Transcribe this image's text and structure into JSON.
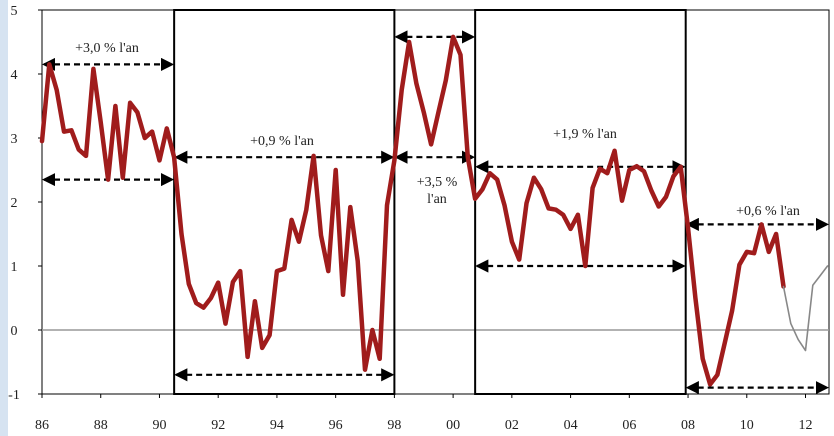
{
  "chart_data": {
    "type": "line",
    "title": "",
    "xlabel": "",
    "ylabel": "",
    "xlim": [
      1986,
      2012.8
    ],
    "ylim": [
      -1,
      5
    ],
    "x_ticks": [
      1986,
      1988,
      1990,
      1992,
      1994,
      1996,
      1998,
      2000,
      2002,
      2004,
      2006,
      2008,
      2010,
      2012
    ],
    "x_tick_labels": [
      "86",
      "88",
      "90",
      "92",
      "94",
      "96",
      "98",
      "00",
      "02",
      "04",
      "06",
      "08",
      "10",
      "12"
    ],
    "y_ticks": [
      -1,
      0,
      1,
      2,
      3,
      4,
      5
    ],
    "y_tick_labels": [
      "-1",
      "0",
      "1",
      "2",
      "3",
      "4",
      "5"
    ],
    "zero_line": true,
    "series": [
      {
        "color": "#a01c1c",
        "style": "thick",
        "points": [
          [
            1986.0,
            2.95
          ],
          [
            1986.25,
            4.15
          ],
          [
            1986.5,
            3.75
          ],
          [
            1986.75,
            3.1
          ],
          [
            1987.0,
            3.12
          ],
          [
            1987.25,
            2.82
          ],
          [
            1987.5,
            2.72
          ],
          [
            1987.75,
            4.08
          ],
          [
            1988.0,
            3.25
          ],
          [
            1988.25,
            2.35
          ],
          [
            1988.5,
            3.5
          ],
          [
            1988.75,
            2.38
          ],
          [
            1989.0,
            3.55
          ],
          [
            1989.25,
            3.4
          ],
          [
            1989.5,
            3.0
          ],
          [
            1989.75,
            3.1
          ],
          [
            1990.0,
            2.65
          ],
          [
            1990.25,
            3.15
          ],
          [
            1990.5,
            2.7
          ],
          [
            1990.75,
            1.5
          ],
          [
            1991.0,
            0.72
          ],
          [
            1991.25,
            0.42
          ],
          [
            1991.5,
            0.35
          ],
          [
            1991.75,
            0.5
          ],
          [
            1992.0,
            0.74
          ],
          [
            1992.25,
            0.1
          ],
          [
            1992.5,
            0.75
          ],
          [
            1992.75,
            0.92
          ],
          [
            1993.0,
            -0.42
          ],
          [
            1993.25,
            0.45
          ],
          [
            1993.5,
            -0.28
          ],
          [
            1993.75,
            -0.08
          ],
          [
            1994.0,
            0.92
          ],
          [
            1994.25,
            0.96
          ],
          [
            1994.5,
            1.72
          ],
          [
            1994.75,
            1.38
          ],
          [
            1995.0,
            1.88
          ],
          [
            1995.25,
            2.72
          ],
          [
            1995.5,
            1.48
          ],
          [
            1995.75,
            0.92
          ],
          [
            1996.0,
            2.5
          ],
          [
            1996.25,
            0.55
          ],
          [
            1996.5,
            1.92
          ],
          [
            1996.75,
            1.08
          ],
          [
            1997.0,
            -0.62
          ],
          [
            1997.25,
            0.0
          ],
          [
            1997.5,
            -0.45
          ],
          [
            1997.75,
            1.95
          ],
          [
            1998.0,
            2.65
          ],
          [
            1998.25,
            3.75
          ],
          [
            1998.5,
            4.5
          ],
          [
            1998.75,
            3.85
          ],
          [
            1999.0,
            3.4
          ],
          [
            1999.25,
            2.9
          ],
          [
            1999.5,
            3.4
          ],
          [
            1999.75,
            3.9
          ],
          [
            2000.0,
            4.58
          ],
          [
            2000.25,
            4.3
          ],
          [
            2000.5,
            2.7
          ],
          [
            2000.75,
            2.05
          ],
          [
            2001.0,
            2.2
          ],
          [
            2001.25,
            2.45
          ],
          [
            2001.5,
            2.35
          ],
          [
            2001.75,
            1.95
          ],
          [
            2002.0,
            1.38
          ],
          [
            2002.25,
            1.1
          ],
          [
            2002.5,
            1.98
          ],
          [
            2002.75,
            2.38
          ],
          [
            2003.0,
            2.2
          ],
          [
            2003.25,
            1.9
          ],
          [
            2003.5,
            1.88
          ],
          [
            2003.75,
            1.8
          ],
          [
            2004.0,
            1.58
          ],
          [
            2004.25,
            1.8
          ],
          [
            2004.5,
            1.0
          ],
          [
            2004.75,
            2.22
          ],
          [
            2005.0,
            2.52
          ],
          [
            2005.25,
            2.45
          ],
          [
            2005.5,
            2.8
          ],
          [
            2005.75,
            2.02
          ],
          [
            2006.0,
            2.5
          ],
          [
            2006.25,
            2.56
          ],
          [
            2006.5,
            2.48
          ],
          [
            2006.75,
            2.18
          ],
          [
            2007.0,
            1.93
          ],
          [
            2007.25,
            2.08
          ],
          [
            2007.5,
            2.4
          ],
          [
            2007.75,
            2.55
          ],
          [
            2008.0,
            1.6
          ],
          [
            2008.25,
            0.5
          ],
          [
            2008.5,
            -0.45
          ],
          [
            2008.75,
            -0.85
          ],
          [
            2009.0,
            -0.7
          ],
          [
            2009.25,
            -0.2
          ],
          [
            2009.5,
            0.3
          ],
          [
            2009.75,
            1.02
          ],
          [
            2010.0,
            1.22
          ],
          [
            2010.25,
            1.2
          ],
          [
            2010.5,
            1.65
          ],
          [
            2010.75,
            1.22
          ],
          [
            2011.0,
            1.5
          ],
          [
            2011.25,
            0.68
          ]
        ]
      },
      {
        "color": "#888888",
        "style": "thin",
        "points": [
          [
            2011.25,
            0.68
          ],
          [
            2011.5,
            0.1
          ],
          [
            2011.75,
            -0.15
          ],
          [
            2012.0,
            -0.32
          ],
          [
            2012.25,
            0.7
          ],
          [
            2012.5,
            0.85
          ],
          [
            2012.75,
            1.0
          ]
        ]
      }
    ],
    "boxes": [
      [
        1990.5,
        1998.0
      ],
      [
        2000.75,
        2007.92
      ]
    ],
    "annotations": [
      {
        "text": "+3,0 % l'an"
      },
      {
        "text": "+0,9 % l'an"
      },
      {
        "text": "+3,5 %"
      },
      {
        "text": "l'an"
      },
      {
        "text": "+1,9 % l'an"
      },
      {
        "text": "+0,6 % l'an"
      }
    ],
    "trend_arrows": [
      {
        "x0": 1986.0,
        "x1": 1990.5,
        "y": 4.15
      },
      {
        "x0": 1986.0,
        "x1": 1990.5,
        "y": 2.35
      },
      {
        "x0": 1990.5,
        "x1": 1998.0,
        "y": 2.7
      },
      {
        "x0": 1990.5,
        "x1": 1998.0,
        "y": -0.7
      },
      {
        "x0": 1998.0,
        "x1": 2000.75,
        "y": 4.58
      },
      {
        "x0": 1998.0,
        "x1": 2000.75,
        "y": 2.7
      },
      {
        "x0": 2000.75,
        "x1": 2007.92,
        "y": 2.55
      },
      {
        "x0": 2000.75,
        "x1": 2007.92,
        "y": 1.0
      },
      {
        "x0": 2007.92,
        "x1": 2012.8,
        "y": 1.65
      },
      {
        "x0": 2007.92,
        "x1": 2012.8,
        "y": -0.9
      }
    ],
    "colors": {
      "main": "#a01c1c",
      "projection": "#888888",
      "frame": "#000000",
      "zero": "#999999",
      "left_strip": "#d6e3f1"
    }
  }
}
